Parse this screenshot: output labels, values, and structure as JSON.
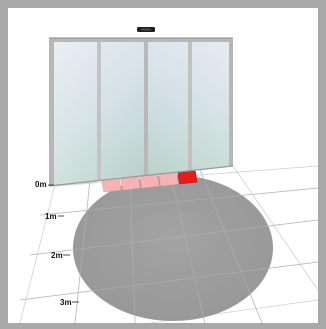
{
  "scene": {
    "distance_markers": [
      {
        "id": "0m",
        "label": "0m"
      },
      {
        "id": "1m",
        "label": "1m"
      },
      {
        "id": "2m",
        "label": "2m"
      },
      {
        "id": "3m",
        "label": "3m"
      }
    ],
    "door_panels": 4,
    "zone_segments": 5,
    "active_segment_index": 4,
    "colors": {
      "frame": "#a8a8a8",
      "floor": "#ffffff",
      "grid": "#d2d2d2",
      "detection_area": "#9c9c9c",
      "segment_inactive": "#f7b3b3",
      "segment_active": "#e81c1c",
      "glass_top": "#d9e2ec",
      "glass_bottom": "#bfd6cf",
      "sensor": "#1e1e1e"
    }
  }
}
